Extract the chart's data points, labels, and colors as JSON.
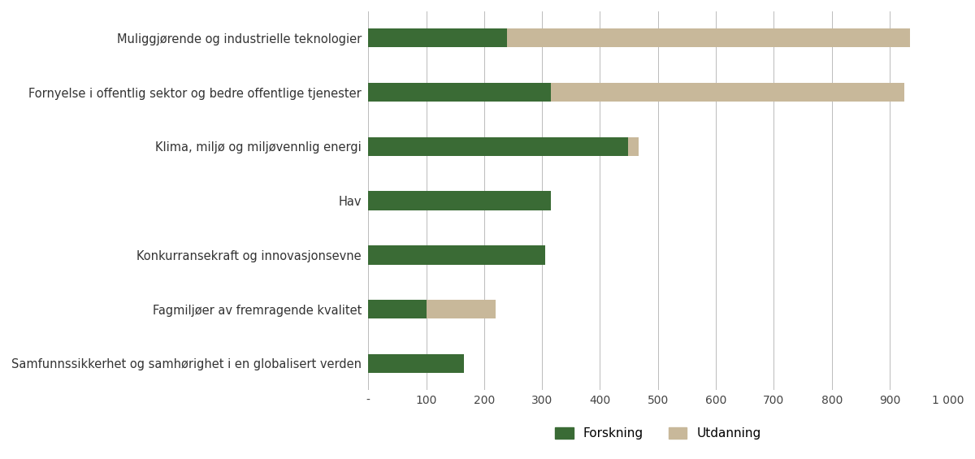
{
  "categories": [
    "Muliggjørende og industrielle teknologier",
    "Fornyelse i offentlig sektor og bedre offentlige tjenester",
    "Klima, miljø og miljøvennlig energi",
    "Hav",
    "Konkurransekraft og innovasjonsevne",
    "Fagmiljøer av fremragende kvalitet",
    "Samfunnssikkerhet og samhørighet i en globalisert verden"
  ],
  "forskning": [
    240,
    315,
    448,
    315,
    305,
    100,
    165
  ],
  "utdanning": [
    695,
    610,
    18,
    0,
    0,
    120,
    0
  ],
  "forskning_color": "#3a6b35",
  "utdanning_color": "#c8b89a",
  "background_color": "#ffffff",
  "xlim": [
    0,
    1000
  ],
  "xticks": [
    0,
    100,
    200,
    300,
    400,
    500,
    600,
    700,
    800,
    900,
    1000
  ],
  "xtick_labels": [
    "-",
    "100",
    "200",
    "300",
    "400",
    "500",
    "600",
    "700",
    "800",
    "900",
    "1 000"
  ],
  "legend_forskning": "Forskning",
  "legend_utdanning": "Utdanning",
  "bar_height": 0.35,
  "figsize": [
    12.0,
    5.65
  ],
  "dpi": 100
}
